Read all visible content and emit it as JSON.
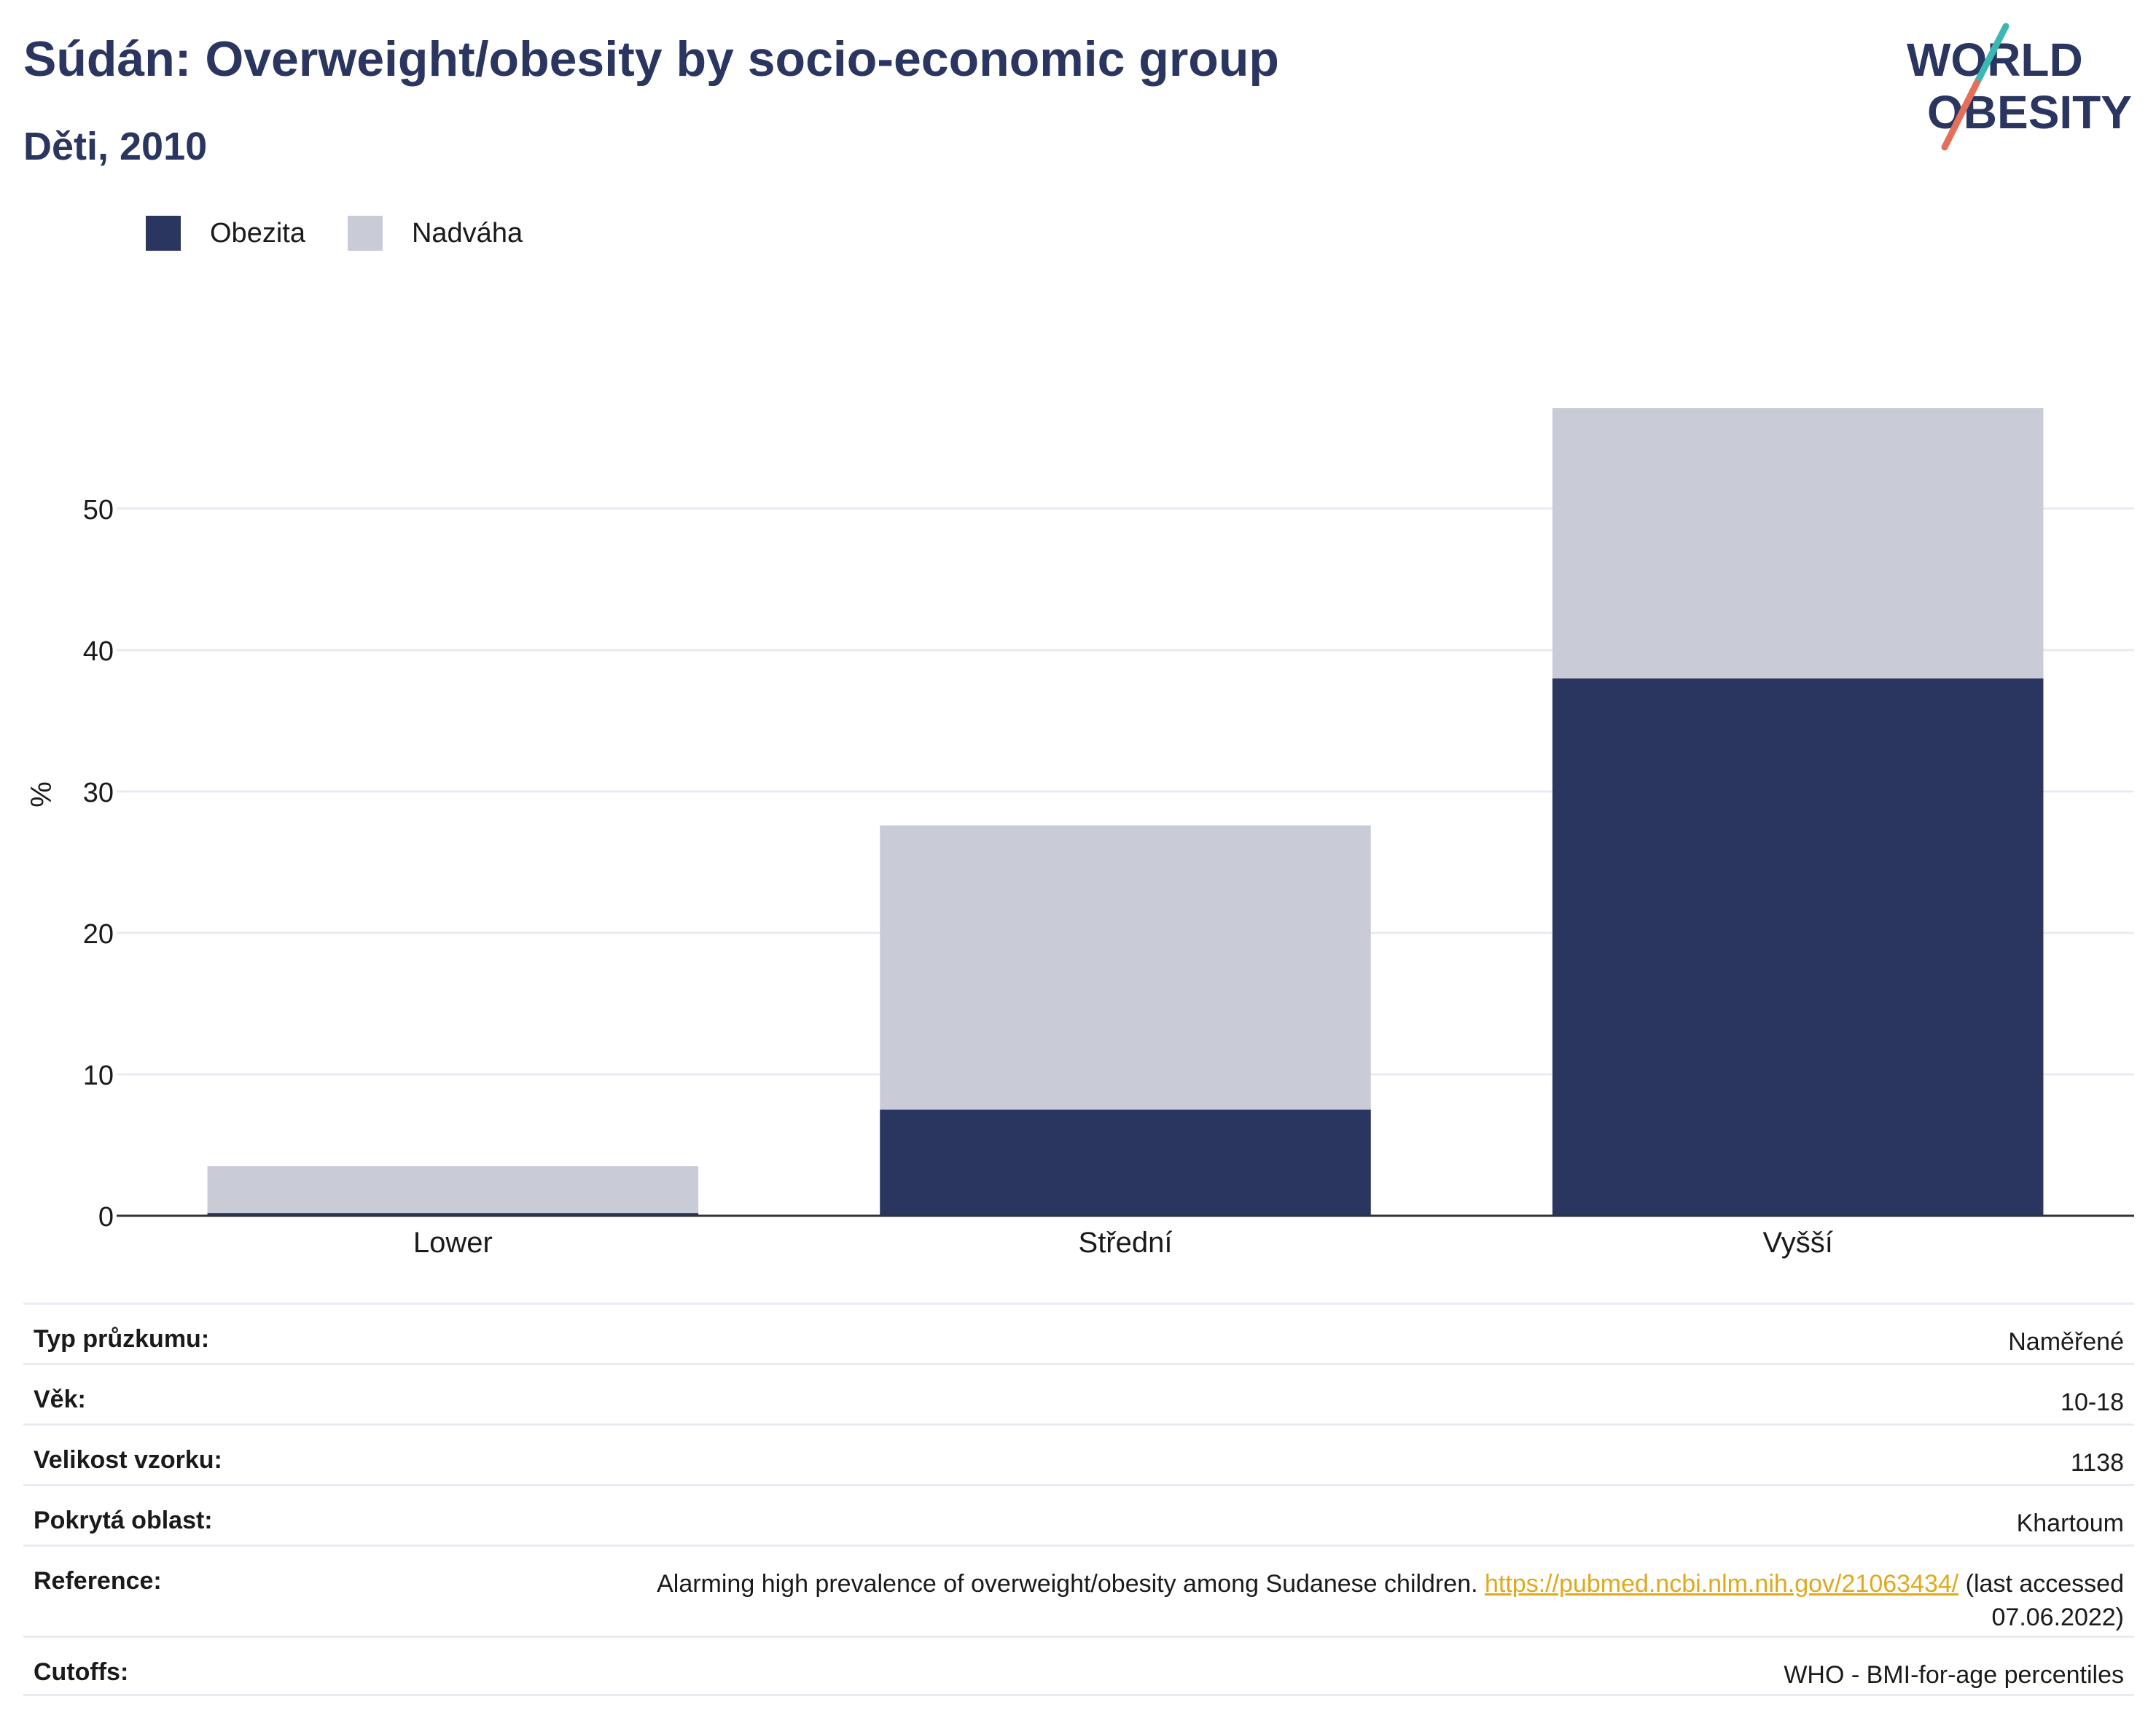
{
  "header": {
    "title": "Súdán: Overweight/obesity by socio-economic group",
    "subtitle": "Děti, 2010"
  },
  "logo": {
    "line1": "WORLD",
    "line2": "OBESITY"
  },
  "colors": {
    "obesity": "#2a3560",
    "overweight": "#c9ccd7",
    "title": "#2a3560",
    "link": "#e0a91b"
  },
  "chart_data": {
    "type": "bar",
    "stacked": true,
    "categories": [
      "Lower",
      "Střední",
      "Vyšší"
    ],
    "series": [
      {
        "name": "Obezita",
        "values": [
          0.2,
          7.5,
          38.0
        ],
        "color": "#2a3560"
      },
      {
        "name": "Nadváha",
        "values": [
          3.3,
          20.1,
          19.1
        ],
        "color": "#c9ccd7"
      }
    ],
    "ylabel": "%",
    "xlabel": "",
    "ylim": [
      0,
      57.1
    ],
    "yticks": [
      0,
      10,
      20,
      30,
      40,
      50
    ],
    "grid": true,
    "legend_position": "top-left"
  },
  "info": {
    "rows": [
      {
        "key": "Typ průzkumu:",
        "value": "Naměřené"
      },
      {
        "key": "Věk:",
        "value": "10-18"
      },
      {
        "key": "Velikost vzorku:",
        "value": "1138"
      },
      {
        "key": "Pokrytá oblast:",
        "value": "Khartoum"
      }
    ],
    "reference": {
      "key": "Reference:",
      "text": "Alarming high prevalence of overweight/obesity among Sudanese children.",
      "link": "https://pubmed.ncbi.nlm.nih.gov/21063434/",
      "suffix1": "(last accessed",
      "suffix2": "07.06.2022)"
    },
    "cutoffs": {
      "key": "Cutoffs:",
      "value": "WHO - BMI-for-age percentiles"
    }
  }
}
